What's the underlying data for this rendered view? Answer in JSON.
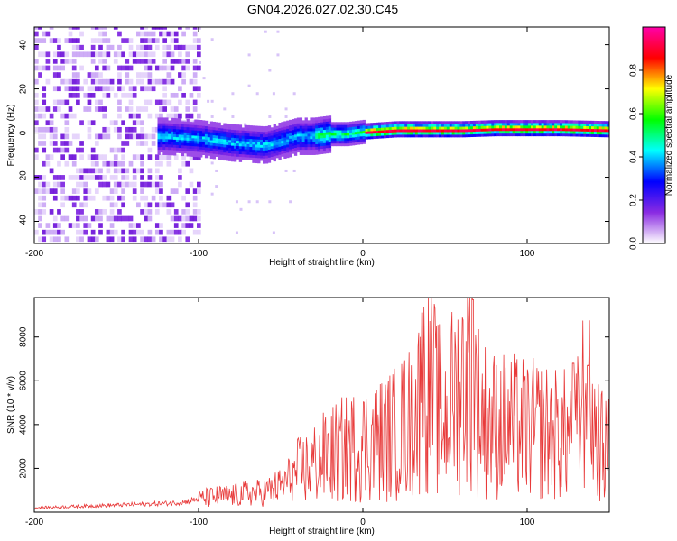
{
  "title": "GN04.2026.027.02.30.C45",
  "chart_data": [
    {
      "type": "heatmap",
      "title": "GN04.2026.027.02.30.C45",
      "xlabel": "Height of straight line (km)",
      "ylabel": "Frequency (Hz)",
      "xlim": [
        -200,
        150
      ],
      "ylim": [
        -50,
        48
      ],
      "xticks": [
        -200,
        -100,
        0,
        100
      ],
      "yticks": [
        -40,
        -20,
        0,
        20,
        40
      ],
      "colorbar": {
        "label": "Normalized spectral amplitude",
        "range": [
          0.0,
          1.0
        ],
        "ticks": [
          "0.0",
          "0.2",
          "0.4",
          "0.6",
          "0.8"
        ],
        "colors": [
          "#ffffff",
          "#8a2be2",
          "#0000ff",
          "#00ffff",
          "#00ff00",
          "#ffff00",
          "#ff0000",
          "#ff00aa"
        ]
      },
      "ridge": {
        "description": "central frequency of the strongest signal versus height",
        "x": [
          -120,
          -100,
          -80,
          -60,
          -50,
          -40,
          -30,
          -20,
          -10,
          0,
          20,
          40,
          60,
          80,
          100,
          120,
          150
        ],
        "y": [
          -2,
          -3,
          -5,
          -6,
          -4,
          -2,
          -2,
          -1,
          -1,
          0,
          1,
          1,
          1,
          1.5,
          1.5,
          1.5,
          1
        ]
      }
    },
    {
      "type": "line",
      "xlabel": "Height of straight line (km)",
      "ylabel": "SNR (10 * v/v)",
      "xlim": [
        -200,
        150
      ],
      "ylim": [
        0,
        9800
      ],
      "xticks": [
        -200,
        -100,
        0,
        100
      ],
      "yticks": [
        2000,
        4000,
        6000,
        8000
      ],
      "series": [
        {
          "name": "SNR",
          "color": "#e83a3a",
          "x": [
            -200,
            -180,
            -160,
            -140,
            -120,
            -110,
            -100,
            -90,
            -80,
            -70,
            -60,
            -50,
            -40,
            -30,
            -20,
            -10,
            0,
            10,
            20,
            30,
            35,
            40,
            45,
            50,
            55,
            60,
            65,
            70,
            75,
            80,
            90,
            100,
            110,
            120,
            130,
            135,
            140,
            145,
            150
          ],
          "y": [
            200,
            250,
            300,
            350,
            400,
            450,
            600,
            700,
            750,
            850,
            900,
            1200,
            1800,
            2200,
            2600,
            2900,
            3100,
            3300,
            3600,
            4200,
            5000,
            6500,
            4800,
            4200,
            5200,
            5800,
            7500,
            4800,
            4200,
            4000,
            3900,
            3800,
            3700,
            3500,
            3600,
            5500,
            4200,
            3000,
            2800
          ]
        }
      ],
      "peaks": [
        {
          "x": 36,
          "y": 9100
        },
        {
          "x": 67,
          "y": 9700
        },
        {
          "x": 128,
          "y": 6800
        },
        {
          "x": 137,
          "y": 6700
        }
      ]
    }
  ]
}
